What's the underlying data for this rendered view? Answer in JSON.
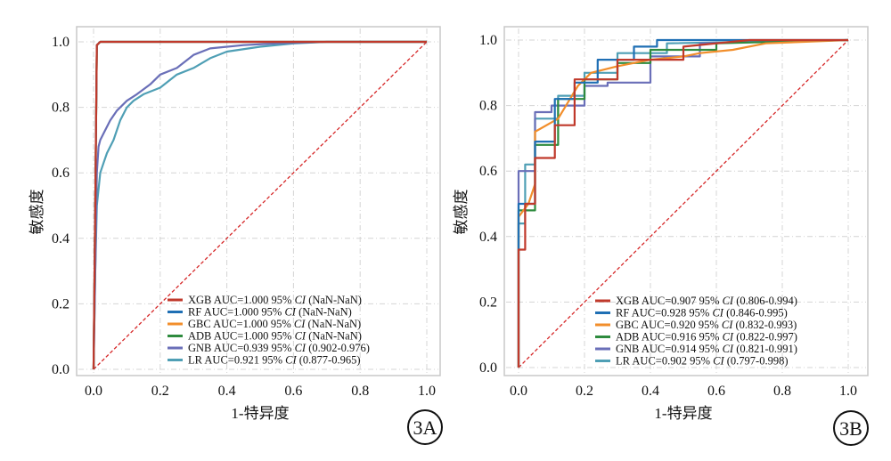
{
  "chart_data": [
    {
      "type": "line",
      "badge": "3A",
      "xlabel": "1-特异度",
      "ylabel": "敏感度",
      "xlim": [
        0,
        1
      ],
      "ylim": [
        0,
        1
      ],
      "xticks": [
        "0.0",
        "0.2",
        "0.4",
        "0.6",
        "0.8",
        "1.0"
      ],
      "yticks": [
        "0.0",
        "0.2",
        "0.4",
        "0.6",
        "0.8",
        "1.0"
      ],
      "grid": true,
      "legend": "lower-right",
      "reference_line_color": "#d62728",
      "series": [
        {
          "name": "XGB",
          "label_prefix": "XGB AUC=1.000 95% ",
          "label_ci": "CI",
          "label_suffix": " (NaN-NaN)",
          "color": "#c0392b",
          "x": [
            0,
            0.005,
            0.01,
            0.02,
            1
          ],
          "y": [
            0,
            0.5,
            0.99,
            1,
            1
          ]
        },
        {
          "name": "RF",
          "label_prefix": "RF AUC=1.000 95% ",
          "label_ci": "CI",
          "label_suffix": " (NaN-NaN)",
          "color": "#1f6fb4",
          "x": [
            0,
            0.005,
            0.01,
            0.02,
            1
          ],
          "y": [
            0,
            0.5,
            0.99,
            1,
            1
          ]
        },
        {
          "name": "GBC",
          "label_prefix": "GBC AUC=1.000 95% ",
          "label_ci": "CI",
          "label_suffix": " (NaN-NaN)",
          "color": "#f28e2b",
          "x": [
            0,
            0.005,
            0.01,
            0.02,
            1
          ],
          "y": [
            0,
            0.5,
            0.99,
            1,
            1
          ]
        },
        {
          "name": "ADB",
          "label_prefix": "ADB AUC=1.000 95% ",
          "label_ci": "CI",
          "label_suffix": " (NaN-NaN)",
          "color": "#2e8b3e",
          "x": [
            0,
            0.005,
            0.01,
            0.02,
            1
          ],
          "y": [
            0,
            0.5,
            0.99,
            1,
            1
          ]
        },
        {
          "name": "GNB",
          "label_prefix": "GNB AUC=0.939 95% ",
          "label_ci": "CI",
          "label_suffix": " (0.902-0.976)",
          "color": "#6a6fb8",
          "x": [
            0,
            0.005,
            0.01,
            0.015,
            0.02,
            0.03,
            0.05,
            0.07,
            0.1,
            0.13,
            0.17,
            0.2,
            0.25,
            0.3,
            0.35,
            0.45,
            0.55,
            0.7,
            1
          ],
          "y": [
            0,
            0.3,
            0.6,
            0.68,
            0.7,
            0.72,
            0.76,
            0.79,
            0.82,
            0.84,
            0.87,
            0.9,
            0.92,
            0.96,
            0.98,
            0.99,
            0.995,
            1,
            1
          ]
        },
        {
          "name": "LR",
          "label_prefix": "LR AUC=0.921 95% ",
          "label_ci": "CI",
          "label_suffix": " (0.877-0.965)",
          "color": "#4f9fb5",
          "x": [
            0,
            0.005,
            0.01,
            0.02,
            0.03,
            0.04,
            0.06,
            0.08,
            0.1,
            0.12,
            0.15,
            0.2,
            0.25,
            0.3,
            0.35,
            0.4,
            0.5,
            0.6,
            0.7,
            1
          ],
          "y": [
            0,
            0.3,
            0.5,
            0.6,
            0.63,
            0.66,
            0.7,
            0.76,
            0.8,
            0.82,
            0.84,
            0.86,
            0.9,
            0.92,
            0.95,
            0.97,
            0.985,
            0.995,
            1,
            1
          ]
        }
      ]
    },
    {
      "type": "line",
      "badge": "3B",
      "xlabel": "1-特异度",
      "ylabel": "敏感度",
      "xlim": [
        0,
        1
      ],
      "ylim": [
        0,
        1
      ],
      "xticks": [
        "0.0",
        "0.2",
        "0.4",
        "0.6",
        "0.8",
        "1.0"
      ],
      "yticks": [
        "0.0",
        "0.2",
        "0.4",
        "0.6",
        "0.8",
        "1.0"
      ],
      "grid": true,
      "legend": "lower-right",
      "reference_line_color": "#d62728",
      "series": [
        {
          "name": "XGB",
          "label_prefix": "XGB AUC=0.907 95% ",
          "label_ci": "CI",
          "label_suffix": " (0.806-0.994)",
          "color": "#c0392b",
          "x": [
            0,
            0,
            0.02,
            0.02,
            0.05,
            0.05,
            0.11,
            0.11,
            0.17,
            0.17,
            0.3,
            0.3,
            0.5,
            0.5,
            0.7,
            1
          ],
          "y": [
            0,
            0.36,
            0.36,
            0.5,
            0.5,
            0.64,
            0.64,
            0.74,
            0.74,
            0.88,
            0.88,
            0.94,
            0.94,
            0.98,
            1,
            1
          ]
        },
        {
          "name": "RF",
          "label_prefix": "RF AUC=0.928 95% ",
          "label_ci": "CI",
          "label_suffix": " (0.846-0.995)",
          "color": "#1f6fb4",
          "x": [
            0,
            0,
            0.05,
            0.05,
            0.11,
            0.11,
            0.17,
            0.17,
            0.24,
            0.24,
            0.35,
            0.35,
            0.42,
            0.42,
            1
          ],
          "y": [
            0,
            0.5,
            0.5,
            0.69,
            0.69,
            0.82,
            0.82,
            0.87,
            0.87,
            0.94,
            0.94,
            0.98,
            0.98,
            1,
            1
          ]
        },
        {
          "name": "GBC",
          "label_prefix": "GBC AUC=0.920 95% ",
          "label_ci": "CI",
          "label_suffix": " (0.832-0.993)",
          "color": "#f28e2b",
          "x": [
            0,
            0,
            0.03,
            0.05,
            0.05,
            0.12,
            0.18,
            0.22,
            0.3,
            0.4,
            0.5,
            0.55,
            0.65,
            0.75,
            1
          ],
          "y": [
            0,
            0.46,
            0.5,
            0.56,
            0.72,
            0.76,
            0.86,
            0.9,
            0.92,
            0.94,
            0.95,
            0.96,
            0.97,
            0.99,
            1
          ]
        },
        {
          "name": "ADB",
          "label_prefix": "ADB AUC=0.916 95% ",
          "label_ci": "CI",
          "label_suffix": " (0.822-0.997)",
          "color": "#2e8b3e",
          "x": [
            0,
            0,
            0.05,
            0.05,
            0.12,
            0.12,
            0.2,
            0.2,
            0.3,
            0.3,
            0.4,
            0.4,
            0.6,
            0.6,
            1
          ],
          "y": [
            0,
            0.48,
            0.48,
            0.68,
            0.68,
            0.82,
            0.82,
            0.88,
            0.88,
            0.93,
            0.93,
            0.97,
            0.97,
            0.99,
            1
          ]
        },
        {
          "name": "GNB",
          "label_prefix": "GNB AUC=0.914 95% ",
          "label_ci": "CI",
          "label_suffix": " (0.821-0.991)",
          "color": "#6a6fb8",
          "x": [
            0,
            0,
            0.05,
            0.05,
            0.1,
            0.1,
            0.2,
            0.2,
            0.27,
            0.27,
            0.4,
            0.4,
            0.55,
            0.55,
            1
          ],
          "y": [
            0,
            0.6,
            0.6,
            0.78,
            0.78,
            0.8,
            0.8,
            0.86,
            0.86,
            0.87,
            0.87,
            0.95,
            0.95,
            0.99,
            1
          ]
        },
        {
          "name": "LR",
          "label_prefix": "LR AUC=0.902 95% ",
          "label_ci": "CI",
          "label_suffix": " (0.797-0.998)",
          "color": "#4f9fb5",
          "x": [
            0,
            0,
            0.02,
            0.02,
            0.05,
            0.05,
            0.12,
            0.12,
            0.2,
            0.2,
            0.3,
            0.3,
            0.45,
            0.45,
            1
          ],
          "y": [
            0,
            0.44,
            0.44,
            0.62,
            0.62,
            0.76,
            0.76,
            0.83,
            0.83,
            0.9,
            0.9,
            0.96,
            0.96,
            0.99,
            1
          ]
        }
      ]
    }
  ]
}
